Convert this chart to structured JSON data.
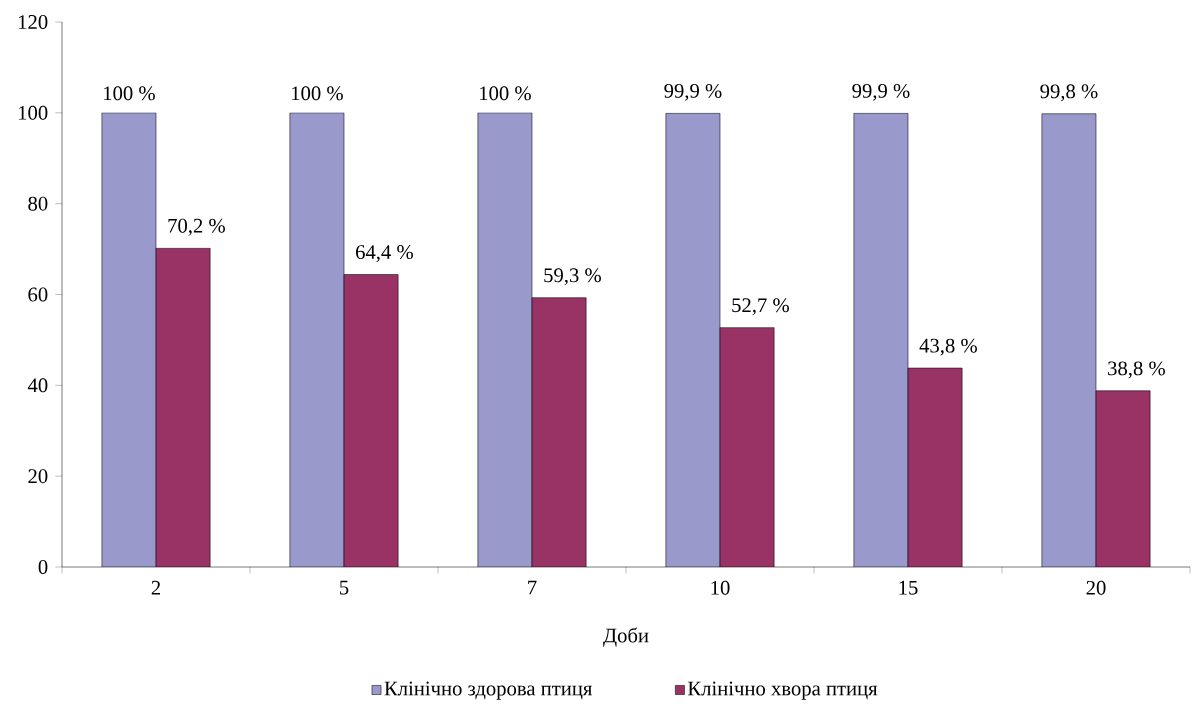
{
  "chart_data": {
    "type": "bar",
    "xlabel": "Доби",
    "categories": [
      "2",
      "5",
      "7",
      "10",
      "15",
      "20"
    ],
    "series": [
      {
        "name": "Клінічно здорова птиця",
        "color": "#9999cc",
        "values": [
          100,
          100,
          100,
          99.9,
          99.9,
          99.8
        ],
        "value_labels": [
          "100 %",
          "100 %",
          "100 %",
          "99,9 %",
          "99,9 %",
          "99,8 %"
        ]
      },
      {
        "name": "Клінічно хвора птиця",
        "color": "#993366",
        "values": [
          70.2,
          64.4,
          59.3,
          52.7,
          43.8,
          38.8
        ],
        "value_labels": [
          "70,2 %",
          "64,4 %",
          "59,3 %",
          "52,7 %",
          "43,8 %",
          "38,8 %"
        ]
      }
    ],
    "ylim": [
      0,
      120
    ],
    "yticks": [
      0,
      20,
      40,
      60,
      80,
      100,
      120
    ],
    "legend": "bottom"
  }
}
